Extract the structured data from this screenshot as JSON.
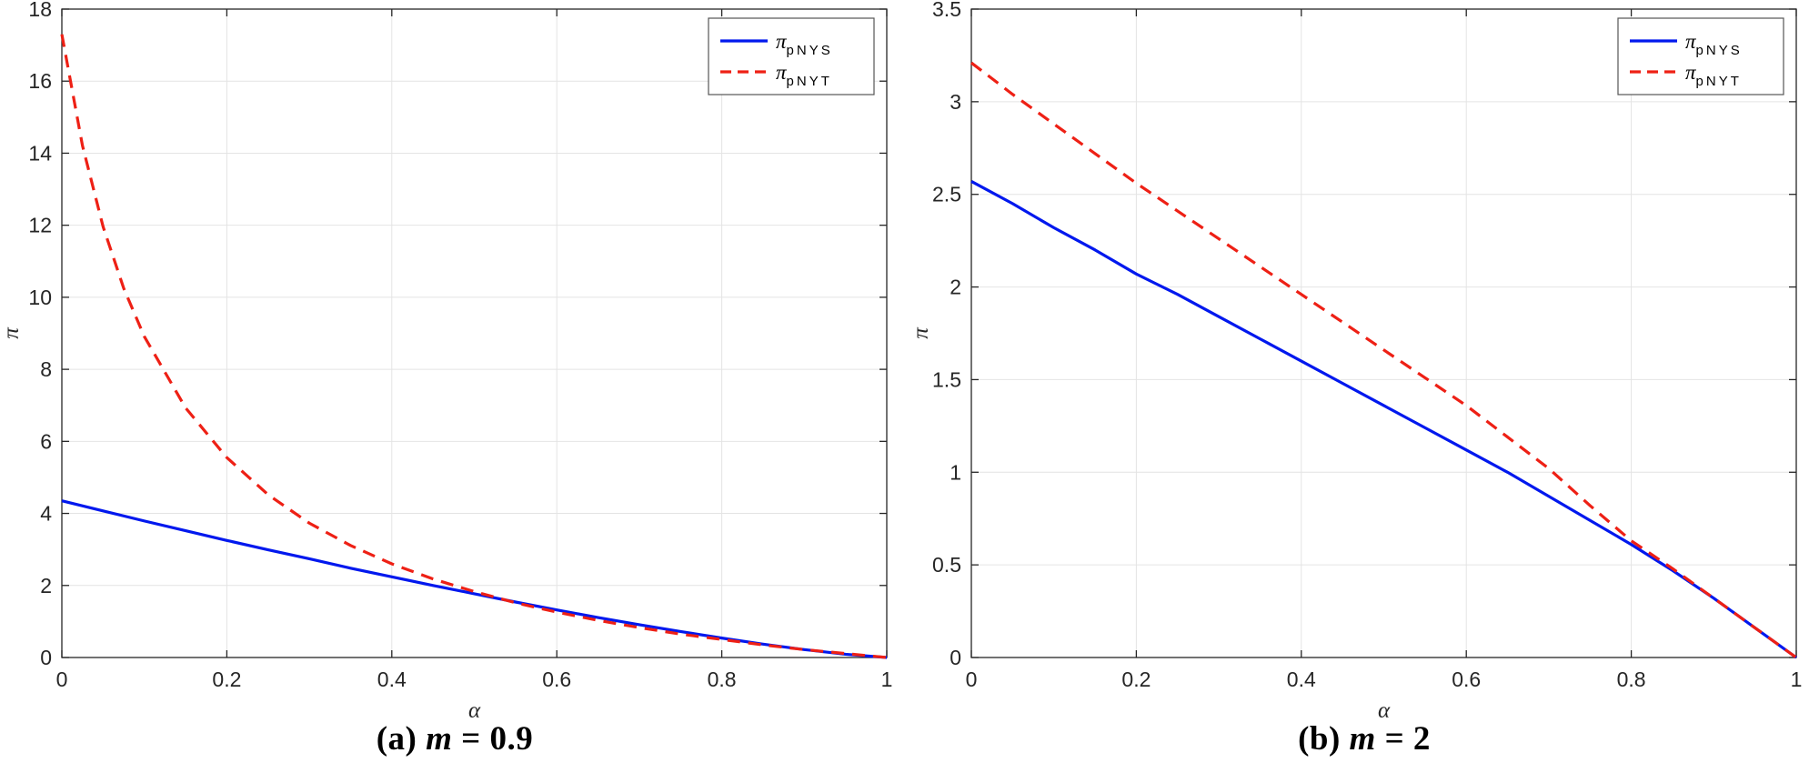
{
  "chart_data": [
    {
      "id": "a",
      "type": "line",
      "caption": {
        "prefix": "(a) ",
        "variable": "m",
        "suffix": " = 0.9"
      },
      "xlabel": "α",
      "ylabel": "π",
      "xlim": [
        0,
        1
      ],
      "ylim": [
        0,
        18
      ],
      "xticks": [
        0,
        0.2,
        0.4,
        0.6,
        0.8,
        1
      ],
      "xtick_labels": [
        "0",
        "0.2",
        "0.4",
        "0.6",
        "0.8",
        "1"
      ],
      "yticks": [
        0,
        2,
        4,
        6,
        8,
        10,
        12,
        14,
        16,
        18
      ],
      "ytick_labels": [
        "0",
        "2",
        "4",
        "6",
        "8",
        "10",
        "12",
        "14",
        "16",
        "18"
      ],
      "grid": true,
      "legend_position": "top-right",
      "series": [
        {
          "name": "pi_pNYS",
          "legend_main": "π",
          "legend_sub": "pNYS",
          "color": "#0018ee",
          "dash": "solid",
          "x": [
            0,
            0.05,
            0.1,
            0.15,
            0.2,
            0.25,
            0.3,
            0.35,
            0.4,
            0.45,
            0.5,
            0.55,
            0.6,
            0.65,
            0.7,
            0.75,
            0.8,
            0.85,
            0.9,
            0.95,
            1
          ],
          "y": [
            4.35,
            4.07,
            3.79,
            3.52,
            3.25,
            2.99,
            2.74,
            2.48,
            2.24,
            2.0,
            1.77,
            1.54,
            1.32,
            1.11,
            0.91,
            0.72,
            0.54,
            0.37,
            0.22,
            0.09,
            0
          ]
        },
        {
          "name": "pi_pNYT",
          "legend_main": "π",
          "legend_sub": "pNYT",
          "color": "#ee2015",
          "dash": "dashed",
          "x": [
            0,
            0.025,
            0.05,
            0.075,
            0.1,
            0.15,
            0.2,
            0.25,
            0.3,
            0.35,
            0.4,
            0.45,
            0.5,
            0.55,
            0.6,
            0.65,
            0.7,
            0.75,
            0.8,
            0.85,
            0.9,
            0.95,
            1
          ],
          "y": [
            17.3,
            14.21,
            11.96,
            10.25,
            8.91,
            6.93,
            5.55,
            4.52,
            3.73,
            3.11,
            2.6,
            2.18,
            1.83,
            1.52,
            1.26,
            1.03,
            0.83,
            0.65,
            0.5,
            0.35,
            0.22,
            0.11,
            0
          ]
        }
      ]
    },
    {
      "id": "b",
      "type": "line",
      "caption": {
        "prefix": "(b) ",
        "variable": "m",
        "suffix": " = 2"
      },
      "xlabel": "α",
      "ylabel": "π",
      "xlim": [
        0,
        1
      ],
      "ylim": [
        0,
        3.5
      ],
      "xticks": [
        0,
        0.2,
        0.4,
        0.6,
        0.8,
        1
      ],
      "xtick_labels": [
        "0",
        "0.2",
        "0.4",
        "0.6",
        "0.8",
        "1"
      ],
      "yticks": [
        0,
        0.5,
        1,
        1.5,
        2,
        2.5,
        3,
        3.5
      ],
      "ytick_labels": [
        "0",
        "0.5",
        "1",
        "1.5",
        "2",
        "2.5",
        "3",
        "3.5"
      ],
      "grid": true,
      "legend_position": "top-right",
      "series": [
        {
          "name": "pi_pNYS",
          "legend_main": "π",
          "legend_sub": "pNYS",
          "color": "#0018ee",
          "dash": "solid",
          "x": [
            0,
            0.05,
            0.1,
            0.15,
            0.2,
            0.25,
            0.3,
            0.35,
            0.4,
            0.45,
            0.5,
            0.55,
            0.6,
            0.65,
            0.7,
            0.75,
            0.8,
            0.85,
            0.9,
            0.95,
            1
          ],
          "y": [
            2.57,
            2.45,
            2.32,
            2.2,
            2.07,
            1.96,
            1.84,
            1.72,
            1.6,
            1.48,
            1.36,
            1.24,
            1.12,
            1.0,
            0.87,
            0.74,
            0.61,
            0.47,
            0.32,
            0.16,
            0
          ]
        },
        {
          "name": "pi_pNYT",
          "legend_main": "π",
          "legend_sub": "pNYT",
          "color": "#ee2015",
          "dash": "dashed",
          "x": [
            0,
            0.05,
            0.1,
            0.15,
            0.2,
            0.25,
            0.3,
            0.35,
            0.4,
            0.45,
            0.5,
            0.55,
            0.6,
            0.65,
            0.7,
            0.75,
            0.8,
            0.85,
            0.9,
            0.95,
            1
          ],
          "y": [
            3.21,
            3.04,
            2.88,
            2.72,
            2.56,
            2.41,
            2.26,
            2.11,
            1.96,
            1.81,
            1.66,
            1.51,
            1.36,
            1.19,
            1.02,
            0.82,
            0.63,
            0.48,
            0.32,
            0.16,
            0
          ]
        }
      ]
    }
  ]
}
